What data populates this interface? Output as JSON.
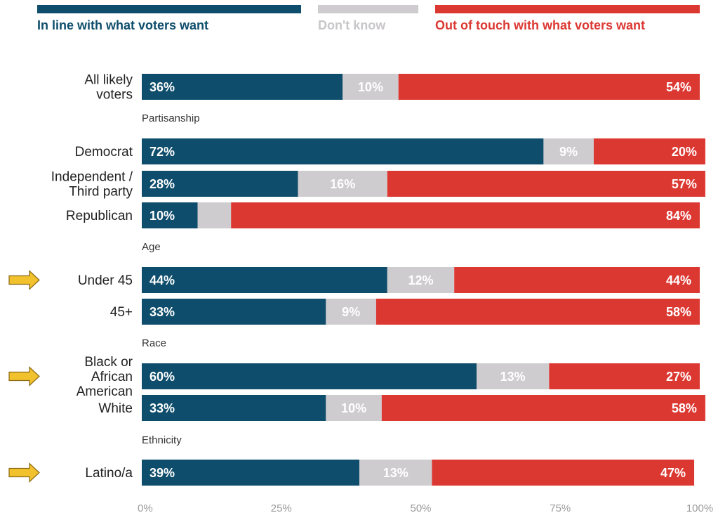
{
  "colors": {
    "in_line": "#0e4d6b",
    "dont_know": "#cfcccf",
    "out_of_touch": "#dc3832",
    "legend_dont_know_text": "#c8c6c9",
    "arrow_fill": "#f2c12e",
    "arrow_stroke": "#8a6a12"
  },
  "chart_data": {
    "type": "bar",
    "orientation": "horizontal",
    "stacked": true,
    "xlim": [
      0,
      100
    ],
    "x_ticks": [
      "0%",
      "25%",
      "50%",
      "75%",
      "100%"
    ],
    "legend_position": "top",
    "series": [
      {
        "name": "In line with what voters want",
        "color_key": "in_line",
        "values": [
          36,
          72,
          28,
          10,
          44,
          33,
          60,
          33,
          39
        ]
      },
      {
        "name": "Don't know",
        "color_key": "dont_know",
        "values": [
          10,
          9,
          16,
          6,
          12,
          9,
          13,
          10,
          13
        ]
      },
      {
        "name": "Out of touch with what voters want",
        "color_key": "out_of_touch",
        "values": [
          54,
          20,
          57,
          84,
          44,
          58,
          27,
          58,
          47
        ]
      }
    ],
    "value_labels": [
      [
        "36%",
        "10%",
        "54%"
      ],
      [
        "72%",
        "9%",
        "20%"
      ],
      [
        "28%",
        "16%",
        "57%"
      ],
      [
        "10%",
        "",
        "84%"
      ],
      [
        "44%",
        "12%",
        "44%"
      ],
      [
        "33%",
        "9%",
        "58%"
      ],
      [
        "60%",
        "13%",
        "27%"
      ],
      [
        "33%",
        "10%",
        "58%"
      ],
      [
        "39%",
        "13%",
        "47%"
      ]
    ],
    "categories": [
      {
        "label_lines": [
          "All likely",
          "voters"
        ],
        "group": null,
        "highlighted": false
      },
      {
        "label_lines": [
          "Democrat"
        ],
        "group": "Partisanship",
        "highlighted": false
      },
      {
        "label_lines": [
          "Independent /",
          "Third party"
        ],
        "group": "Partisanship",
        "highlighted": false
      },
      {
        "label_lines": [
          "Republican"
        ],
        "group": "Partisanship",
        "highlighted": false
      },
      {
        "label_lines": [
          "Under 45"
        ],
        "group": "Age",
        "highlighted": true
      },
      {
        "label_lines": [
          "45+"
        ],
        "group": "Age",
        "highlighted": false
      },
      {
        "label_lines": [
          "Black or",
          "African",
          "American"
        ],
        "group": "Race",
        "highlighted": true
      },
      {
        "label_lines": [
          "White"
        ],
        "group": "Race",
        "highlighted": false
      },
      {
        "label_lines": [
          "Latino/a"
        ],
        "group": "Ethnicity",
        "highlighted": true
      }
    ],
    "group_headers": [
      "Partisanship",
      "Age",
      "Race",
      "Ethnicity"
    ]
  }
}
